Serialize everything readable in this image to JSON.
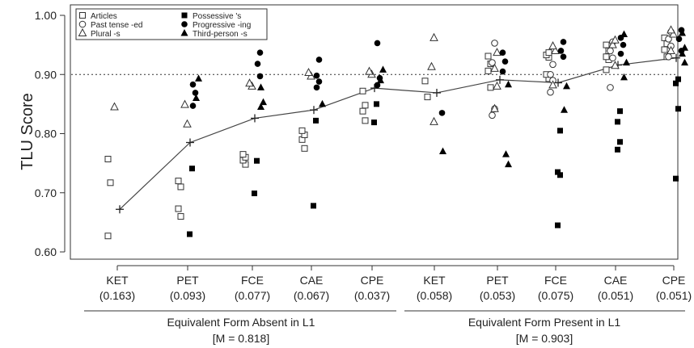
{
  "chart_data": {
    "type": "scatter",
    "ylabel": "TLU Score",
    "ylim": [
      0.6,
      1.0
    ],
    "yticks": [
      "0.60",
      "0.70",
      "0.80",
      "0.90",
      "1.00"
    ],
    "reference_line": 0.9,
    "categories": [
      {
        "label": "KET",
        "sub": "(0.163)"
      },
      {
        "label": "PET",
        "sub": "(0.093)"
      },
      {
        "label": "FCE",
        "sub": "(0.077)"
      },
      {
        "label": "CAE",
        "sub": "(0.067)"
      },
      {
        "label": "CPE",
        "sub": "(0.037)"
      },
      {
        "label": "KET",
        "sub": "(0.058)"
      },
      {
        "label": "PET",
        "sub": "(0.053)"
      },
      {
        "label": "FCE",
        "sub": "(0.075)"
      },
      {
        "label": "CAE",
        "sub": "(0.051)"
      },
      {
        "label": "CPE",
        "sub": "(0.051)"
      }
    ],
    "groups": [
      {
        "label": "Equivalent Form Absent in L1",
        "mean": "[M = 0.818]"
      },
      {
        "label": "Equivalent Form Present in L1",
        "mean": "[M = 0.903]"
      }
    ],
    "legend": {
      "position": "top-left",
      "items": [
        {
          "label": "Articles",
          "marker": "open-square"
        },
        {
          "label": "Past tense -ed",
          "marker": "open-circle"
        },
        {
          "label": "Plural -s",
          "marker": "open-triangle"
        },
        {
          "label": "Possessive 's",
          "marker": "filled-square"
        },
        {
          "label": "Progressive -ing",
          "marker": "filled-circle"
        },
        {
          "label": "Third-person -s",
          "marker": "filled-triangle"
        }
      ]
    },
    "means": [
      0.672,
      0.785,
      0.826,
      0.84,
      0.877,
      0.869,
      0.891,
      0.886,
      0.916,
      0.928
    ],
    "series": [
      {
        "marker": "open-square",
        "points": [
          [
            0,
            0.627
          ],
          [
            0,
            0.717
          ],
          [
            0,
            0.757
          ],
          [
            1,
            0.66
          ],
          [
            1,
            0.673
          ],
          [
            1,
            0.71
          ],
          [
            1,
            0.72
          ],
          [
            2,
            0.748
          ],
          [
            2,
            0.755
          ],
          [
            2,
            0.76
          ],
          [
            2,
            0.765
          ],
          [
            3,
            0.775
          ],
          [
            3,
            0.79
          ],
          [
            3,
            0.798
          ],
          [
            3,
            0.805
          ],
          [
            4,
            0.822
          ],
          [
            4,
            0.838
          ],
          [
            4,
            0.848
          ],
          [
            4,
            0.872
          ],
          [
            5,
            0.862
          ],
          [
            5,
            0.889
          ],
          [
            6,
            0.878
          ],
          [
            6,
            0.906
          ],
          [
            6,
            0.918
          ],
          [
            6,
            0.931
          ],
          [
            7,
            0.893
          ],
          [
            7,
            0.9
          ],
          [
            7,
            0.929
          ],
          [
            7,
            0.933
          ],
          [
            7,
            0.937
          ],
          [
            8,
            0.908
          ],
          [
            8,
            0.925
          ],
          [
            8,
            0.93
          ],
          [
            8,
            0.94
          ],
          [
            8,
            0.95
          ],
          [
            9,
            0.93
          ],
          [
            9,
            0.942
          ],
          [
            9,
            0.952
          ],
          [
            9,
            0.962
          ]
        ]
      },
      {
        "marker": "open-circle",
        "points": [
          [
            6,
            0.831
          ],
          [
            6,
            0.842
          ],
          [
            6,
            0.92
          ],
          [
            6,
            0.953
          ],
          [
            7,
            0.87
          ],
          [
            7,
            0.89
          ],
          [
            7,
            0.9
          ],
          [
            7,
            0.917
          ],
          [
            8,
            0.878
          ],
          [
            8,
            0.928
          ],
          [
            8,
            0.94
          ],
          [
            8,
            0.955
          ],
          [
            9,
            0.93
          ],
          [
            9,
            0.948
          ],
          [
            9,
            0.96
          ],
          [
            9,
            0.972
          ]
        ]
      },
      {
        "marker": "open-triangle",
        "points": [
          [
            0,
            0.845
          ],
          [
            1,
            0.816
          ],
          [
            1,
            0.849
          ],
          [
            2,
            0.88
          ],
          [
            2,
            0.885
          ],
          [
            3,
            0.897
          ],
          [
            3,
            0.903
          ],
          [
            4,
            0.9
          ],
          [
            4,
            0.905
          ],
          [
            5,
            0.82
          ],
          [
            5,
            0.913
          ],
          [
            5,
            0.962
          ],
          [
            6,
            0.842
          ],
          [
            6,
            0.88
          ],
          [
            6,
            0.91
          ],
          [
            6,
            0.937
          ],
          [
            7,
            0.882
          ],
          [
            7,
            0.94
          ],
          [
            7,
            0.948
          ],
          [
            8,
            0.915
          ],
          [
            8,
            0.95
          ],
          [
            8,
            0.958
          ],
          [
            9,
            0.94
          ],
          [
            9,
            0.968
          ],
          [
            9,
            0.975
          ]
        ]
      },
      {
        "marker": "filled-square",
        "points": [
          [
            1,
            0.63
          ],
          [
            1,
            0.741
          ],
          [
            2,
            0.699
          ],
          [
            2,
            0.754
          ],
          [
            3,
            0.678
          ],
          [
            3,
            0.822
          ],
          [
            4,
            0.819
          ],
          [
            4,
            0.85
          ],
          [
            7,
            0.645
          ],
          [
            7,
            0.73
          ],
          [
            7,
            0.735
          ],
          [
            7,
            0.805
          ],
          [
            8,
            0.773
          ],
          [
            8,
            0.786
          ],
          [
            8,
            0.82
          ],
          [
            8,
            0.838
          ],
          [
            9,
            0.724
          ],
          [
            9,
            0.842
          ],
          [
            9,
            0.885
          ],
          [
            9,
            0.892
          ]
        ]
      },
      {
        "marker": "filled-circle",
        "points": [
          [
            1,
            0.847
          ],
          [
            1,
            0.869
          ],
          [
            1,
            0.883
          ],
          [
            2,
            0.897
          ],
          [
            2,
            0.918
          ],
          [
            2,
            0.937
          ],
          [
            3,
            0.878
          ],
          [
            3,
            0.888
          ],
          [
            3,
            0.898
          ],
          [
            3,
            0.925
          ],
          [
            4,
            0.882
          ],
          [
            4,
            0.894
          ],
          [
            4,
            0.953
          ],
          [
            5,
            0.835
          ],
          [
            6,
            0.905
          ],
          [
            6,
            0.922
          ],
          [
            6,
            0.937
          ],
          [
            7,
            0.93
          ],
          [
            7,
            0.94
          ],
          [
            7,
            0.955
          ],
          [
            8,
            0.935
          ],
          [
            8,
            0.95
          ],
          [
            8,
            0.962
          ],
          [
            9,
            0.94
          ],
          [
            9,
            0.96
          ],
          [
            9,
            0.975
          ]
        ]
      },
      {
        "marker": "filled-triangle",
        "points": [
          [
            1,
            0.86
          ],
          [
            1,
            0.893
          ],
          [
            2,
            0.845
          ],
          [
            2,
            0.853
          ],
          [
            2,
            0.878
          ],
          [
            3,
            0.85
          ],
          [
            4,
            0.89
          ],
          [
            4,
            0.908
          ],
          [
            5,
            0.77
          ],
          [
            6,
            0.748
          ],
          [
            6,
            0.765
          ],
          [
            6,
            0.883
          ],
          [
            7,
            0.84
          ],
          [
            7,
            0.88
          ],
          [
            8,
            0.895
          ],
          [
            8,
            0.92
          ],
          [
            8,
            0.968
          ],
          [
            9,
            0.92
          ],
          [
            9,
            0.935
          ],
          [
            9,
            0.945
          ],
          [
            9,
            0.97
          ]
        ]
      }
    ]
  }
}
